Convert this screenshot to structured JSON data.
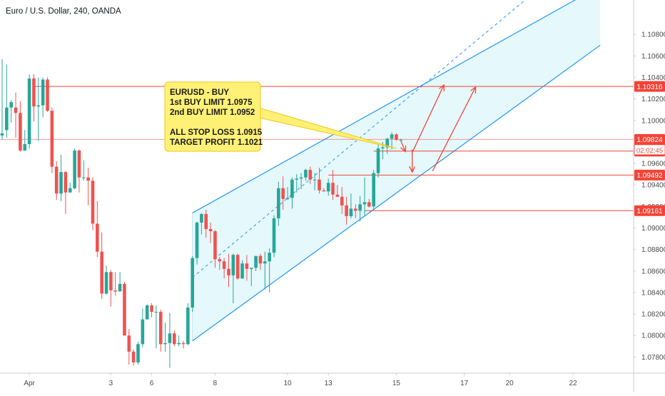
{
  "symbol_title": "Euro / U.S. Dollar, 240, OANDA",
  "chart_data": {
    "type": "candlestick",
    "title": "Euro / U.S. Dollar, 240, OANDA",
    "ylim": [
      1.0765,
      1.1112
    ],
    "y_ticks": [
      "1.10800",
      "1.10600",
      "1.10400",
      "1.10200",
      "1.10000",
      "1.09800",
      "1.09600",
      "1.09400",
      "1.09200",
      "1.09000",
      "1.08800",
      "1.08600",
      "1.08400",
      "1.08200",
      "1.08000",
      "1.07800"
    ],
    "y_tick_values": [
      1.108,
      1.106,
      1.104,
      1.102,
      1.1,
      1.098,
      1.096,
      1.094,
      1.092,
      1.09,
      1.088,
      1.086,
      1.084,
      1.082,
      1.08,
      1.078
    ],
    "x_ticks": [
      "Apr",
      "3",
      "6",
      "8",
      "10",
      "13",
      "15",
      "17",
      "20",
      "22"
    ],
    "x_tick_bars": [
      6,
      24,
      33,
      47,
      63,
      72,
      87,
      102,
      112,
      126
    ],
    "bar_count": 89,
    "candles": [
      [
        1.0986,
        1.0988,
        1.1057,
        1.0982
      ],
      [
        1.0991,
        1.1012,
        1.1052,
        1.0984
      ],
      [
        1.1012,
        1.1017,
        1.1019,
        1.0998
      ],
      [
        1.1012,
        1.1007,
        1.1026,
        1.0984
      ],
      [
        1.1007,
        1.0972,
        1.1018,
        1.0971
      ],
      [
        1.0972,
        1.0978,
        1.0991,
        1.0972
      ],
      [
        1.0978,
        1.1039,
        1.1043,
        1.0974
      ],
      [
        1.1039,
        1.1013,
        1.1043,
        1.0999
      ],
      [
        1.1013,
        1.1014,
        1.104,
        1.0981
      ],
      [
        1.1014,
        1.1038,
        1.104,
        1.1003
      ],
      [
        1.1038,
        1.1009,
        1.104,
        1.1008
      ],
      [
        1.1009,
        1.0957,
        1.1012,
        1.0951
      ],
      [
        1.0957,
        1.0932,
        1.0962,
        1.0926
      ],
      [
        1.0932,
        1.0952,
        1.0968,
        1.0925
      ],
      [
        1.0952,
        1.0933,
        1.0953,
        1.0913
      ],
      [
        1.0933,
        1.0937,
        1.0942,
        1.0933
      ],
      [
        1.0937,
        1.0972,
        1.0974,
        1.0936
      ],
      [
        1.0972,
        1.0947,
        1.0973,
        1.0933
      ],
      [
        1.0947,
        1.0947,
        1.0963,
        1.0944
      ],
      [
        1.0947,
        1.0944,
        1.0956,
        1.0921
      ],
      [
        1.0944,
        1.0904,
        1.0947,
        1.0898
      ],
      [
        1.0904,
        1.0878,
        1.0925,
        1.0873
      ],
      [
        1.0878,
        1.0839,
        1.0896,
        1.0834
      ],
      [
        1.0839,
        1.0859,
        1.0865,
        1.0838
      ],
      [
        1.0859,
        1.0842,
        1.0861,
        1.0827
      ],
      [
        1.0842,
        1.0841,
        1.0859,
        1.0837
      ],
      [
        1.0841,
        1.0848,
        1.0859,
        1.0841
      ],
      [
        1.0848,
        1.08,
        1.085,
        1.08
      ],
      [
        1.08,
        1.0785,
        1.0806,
        1.0773
      ],
      [
        1.0785,
        1.0775,
        1.0787,
        1.0772
      ],
      [
        1.0775,
        1.0792,
        1.0794,
        1.0773
      ],
      [
        1.0792,
        1.0815,
        1.0825,
        1.0789
      ],
      [
        1.0815,
        1.0828,
        1.0829,
        1.0815
      ],
      [
        1.0828,
        1.0822,
        1.083,
        1.0817
      ],
      [
        1.0822,
        1.0822,
        1.0828,
        1.0788
      ],
      [
        1.0822,
        1.0792,
        1.0824,
        1.0785
      ],
      [
        1.0792,
        1.0793,
        1.0812,
        1.0785
      ],
      [
        1.0793,
        1.0802,
        1.0821,
        1.077
      ],
      [
        1.0802,
        1.0792,
        1.0805,
        1.079
      ],
      [
        1.0792,
        1.0793,
        1.08,
        1.079
      ],
      [
        1.0793,
        1.0792,
        1.0795,
        1.0788
      ],
      [
        1.0792,
        1.0826,
        1.083,
        1.0791
      ],
      [
        1.0826,
        1.0872,
        1.0874,
        1.0822
      ],
      [
        1.0872,
        1.0905,
        1.0906,
        1.0866
      ],
      [
        1.0905,
        1.0913,
        1.0914,
        1.0894
      ],
      [
        1.0913,
        1.0899,
        1.0917,
        1.0891
      ],
      [
        1.0899,
        1.0897,
        1.0905,
        1.0886
      ],
      [
        1.0897,
        1.0871,
        1.0898,
        1.0863
      ],
      [
        1.0871,
        1.0869,
        1.0873,
        1.0861
      ],
      [
        1.0869,
        1.0862,
        1.0872,
        1.0853
      ],
      [
        1.0862,
        1.0856,
        1.0876,
        1.0845
      ],
      [
        1.0856,
        1.0875,
        1.0876,
        1.083
      ],
      [
        1.0875,
        1.0853,
        1.0876,
        1.0852
      ],
      [
        1.0853,
        1.0867,
        1.087,
        1.0858
      ],
      [
        1.0867,
        1.0862,
        1.0875,
        1.0851
      ],
      [
        1.0862,
        1.0863,
        1.0863,
        1.0846
      ],
      [
        1.0863,
        1.0874,
        1.0874,
        1.086
      ],
      [
        1.0874,
        1.0867,
        1.0876,
        1.0861
      ],
      [
        1.0867,
        1.0869,
        1.0878,
        1.0843
      ],
      [
        1.0869,
        1.0877,
        1.0881,
        1.084
      ],
      [
        1.0877,
        1.0909,
        1.0912,
        1.0873
      ],
      [
        1.0909,
        1.0937,
        1.0943,
        1.0902
      ],
      [
        1.0937,
        1.0927,
        1.0948,
        1.0917
      ],
      [
        1.0927,
        1.0928,
        1.0938,
        1.0926
      ],
      [
        1.0928,
        1.0945,
        1.0947,
        1.0918
      ],
      [
        1.0945,
        1.0946,
        1.095,
        1.0933
      ],
      [
        1.0946,
        1.0947,
        1.0951,
        1.0936
      ],
      [
        1.0947,
        1.0954,
        1.0955,
        1.0944
      ],
      [
        1.0954,
        1.0945,
        1.0957,
        1.0941
      ],
      [
        1.0945,
        1.0945,
        1.0951,
        1.0935
      ],
      [
        1.0945,
        1.0935,
        1.0956,
        1.0932
      ],
      [
        1.0935,
        1.0934,
        1.0937,
        1.0934
      ],
      [
        1.0934,
        1.0942,
        1.0946,
        1.093
      ],
      [
        1.0942,
        1.0931,
        1.0954,
        1.0926
      ],
      [
        1.0931,
        1.0929,
        1.094,
        1.0929
      ],
      [
        1.0929,
        1.0921,
        1.0938,
        1.0913
      ],
      [
        1.0921,
        1.0911,
        1.0929,
        1.0903
      ],
      [
        1.0911,
        1.0918,
        1.0932,
        1.0909
      ],
      [
        1.0918,
        1.0916,
        1.0922,
        1.0909
      ],
      [
        1.0916,
        1.0922,
        1.093,
        1.0906
      ],
      [
        1.0922,
        1.0924,
        1.0947,
        1.0911
      ],
      [
        1.0924,
        1.092,
        1.0927,
        1.0919
      ],
      [
        1.092,
        1.0951,
        1.0954,
        1.0917
      ],
      [
        1.0951,
        1.0974,
        1.0978,
        1.0947
      ],
      [
        1.0974,
        1.0975,
        1.098,
        1.0964
      ],
      [
        1.0975,
        1.0983,
        1.0984,
        1.0969
      ],
      [
        1.0983,
        1.0987,
        1.0989,
        1.0973
      ],
      [
        1.0987,
        1.0982,
        1.0988,
        1.0981
      ],
      [
        1.0982,
        1.0982,
        1.0983,
        1.0981
      ]
    ],
    "horizontal_levels": [
      {
        "value": 1.10316,
        "label": "1.10316",
        "from_bar": 7,
        "color": "#f44336"
      },
      {
        "value": 1.09824,
        "label": "1.09824",
        "from_bar": 0,
        "color": "#f44336",
        "current_price": true
      },
      {
        "value": 1.09715,
        "label": "1.09715",
        "from_bar": 82,
        "color": "#f44336"
      },
      {
        "value": 1.09492,
        "label": "1.09492",
        "from_bar": 72,
        "color": "#f44336"
      },
      {
        "value": 1.09161,
        "label": "1.09161",
        "from_bar": 80,
        "color": "#f44336"
      }
    ],
    "countdown_label": "02:02:45",
    "channel": {
      "upper_start": [
        42,
        1.0914
      ],
      "upper_end": [
        132,
        1.1125
      ],
      "lower_start": [
        42,
        1.0795
      ],
      "lower_end": [
        132,
        1.107
      ],
      "mid_start": [
        42,
        1.0854
      ],
      "mid_end": [
        118,
        1.1121
      ],
      "fill": "#e0f7fa",
      "line": "#2196f3"
    },
    "arrows": [
      {
        "from": [
          88,
          1.0981
        ],
        "to": [
          89,
          1.0971
        ],
        "color": "#f44336"
      },
      {
        "from": [
          90.5,
          1.0973
        ],
        "to": [
          90.5,
          1.0952
        ],
        "color": "#f44336"
      },
      {
        "from": [
          90.5,
          1.097
        ],
        "to": [
          97.5,
          1.1033
        ],
        "color": "#f44336"
      },
      {
        "from": [
          95,
          1.0953
        ],
        "to": [
          104.5,
          1.1031
        ],
        "color": "#f44336"
      }
    ],
    "note": {
      "lines": [
        "EURUSD - BUY",
        "1st BUY LIMIT 1.0975",
        "2nd BUY LIMIT 1.0952",
        "",
        "ALL STOP LOSS 1.0915",
        "TARGET PROFIT 1.1021"
      ],
      "fill": "#fff176",
      "border": "#f5c518",
      "pointer_to": [
        87,
        1.0974
      ]
    },
    "colors": {
      "up": "#26a69a",
      "down": "#ef5350",
      "grid": "#ffffff",
      "axis_text": "#4a4a4a",
      "level": "#f44336"
    },
    "grid": false
  }
}
